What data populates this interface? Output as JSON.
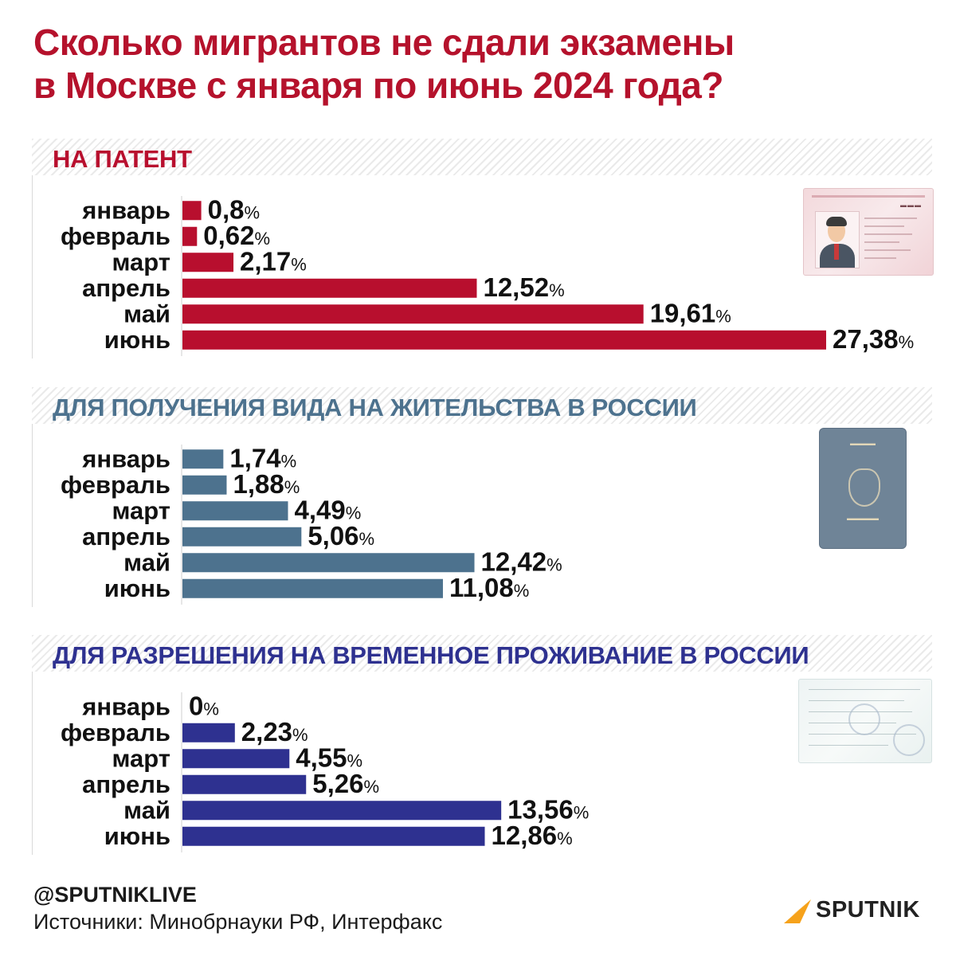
{
  "title": {
    "line1": "Сколько мигрантов не сдали экзамены",
    "line2": "в Москве с января по июнь 2024 года?"
  },
  "colors": {
    "title": "#b5122c",
    "patent": "#b80f2e",
    "residence": "#4d728e",
    "temporary": "#2e3190"
  },
  "footer": {
    "handle": "@SPUTNIKLIVE",
    "sources": "Источники: Минобрнауки РФ, Интерфакс",
    "logo": "SPUTNIK"
  },
  "chart_data": [
    {
      "type": "bar",
      "orientation": "horizontal",
      "title": "НА ПАТЕНТ",
      "categories": [
        "январь",
        "февраль",
        "март",
        "апрель",
        "май",
        "июнь"
      ],
      "values": [
        0.8,
        0.62,
        2.17,
        12.52,
        19.61,
        27.38
      ],
      "labels": [
        "0,8",
        "0,62",
        "2,17",
        "12,52",
        "19,61",
        "27,38"
      ],
      "unit": "%",
      "xlim": [
        0,
        27.38
      ],
      "grid": false,
      "color": "#b80f2e",
      "title_color": "#b80f2e"
    },
    {
      "type": "bar",
      "orientation": "horizontal",
      "title": "ДЛЯ ПОЛУЧЕНИЯ ВИДА НА ЖИТЕЛЬСТВА В РОССИИ",
      "categories": [
        "январь",
        "февраль",
        "март",
        "апрель",
        "май",
        "июнь"
      ],
      "values": [
        1.74,
        1.88,
        4.49,
        5.06,
        12.42,
        11.08
      ],
      "labels": [
        "1,74",
        "1,88",
        "4,49",
        "5,06",
        "12,42",
        "11,08"
      ],
      "unit": "%",
      "xlim": [
        0,
        27.38
      ],
      "grid": false,
      "color": "#4d728e",
      "title_color": "#4d728e"
    },
    {
      "type": "bar",
      "orientation": "horizontal",
      "title": "ДЛЯ РАЗРЕШЕНИЯ НА ВРЕМЕННОЕ ПРОЖИВАНИЕ В РОССИИ",
      "categories": [
        "январь",
        "февраль",
        "март",
        "апрель",
        "май",
        "июнь"
      ],
      "values": [
        0,
        2.23,
        4.55,
        5.26,
        13.56,
        12.86
      ],
      "labels": [
        "0",
        "2,23",
        "4,55",
        "5,26",
        "13,56",
        "12,86"
      ],
      "unit": "%",
      "xlim": [
        0,
        27.38
      ],
      "grid": false,
      "color": "#2e3190",
      "title_color": "#2e3190"
    }
  ]
}
